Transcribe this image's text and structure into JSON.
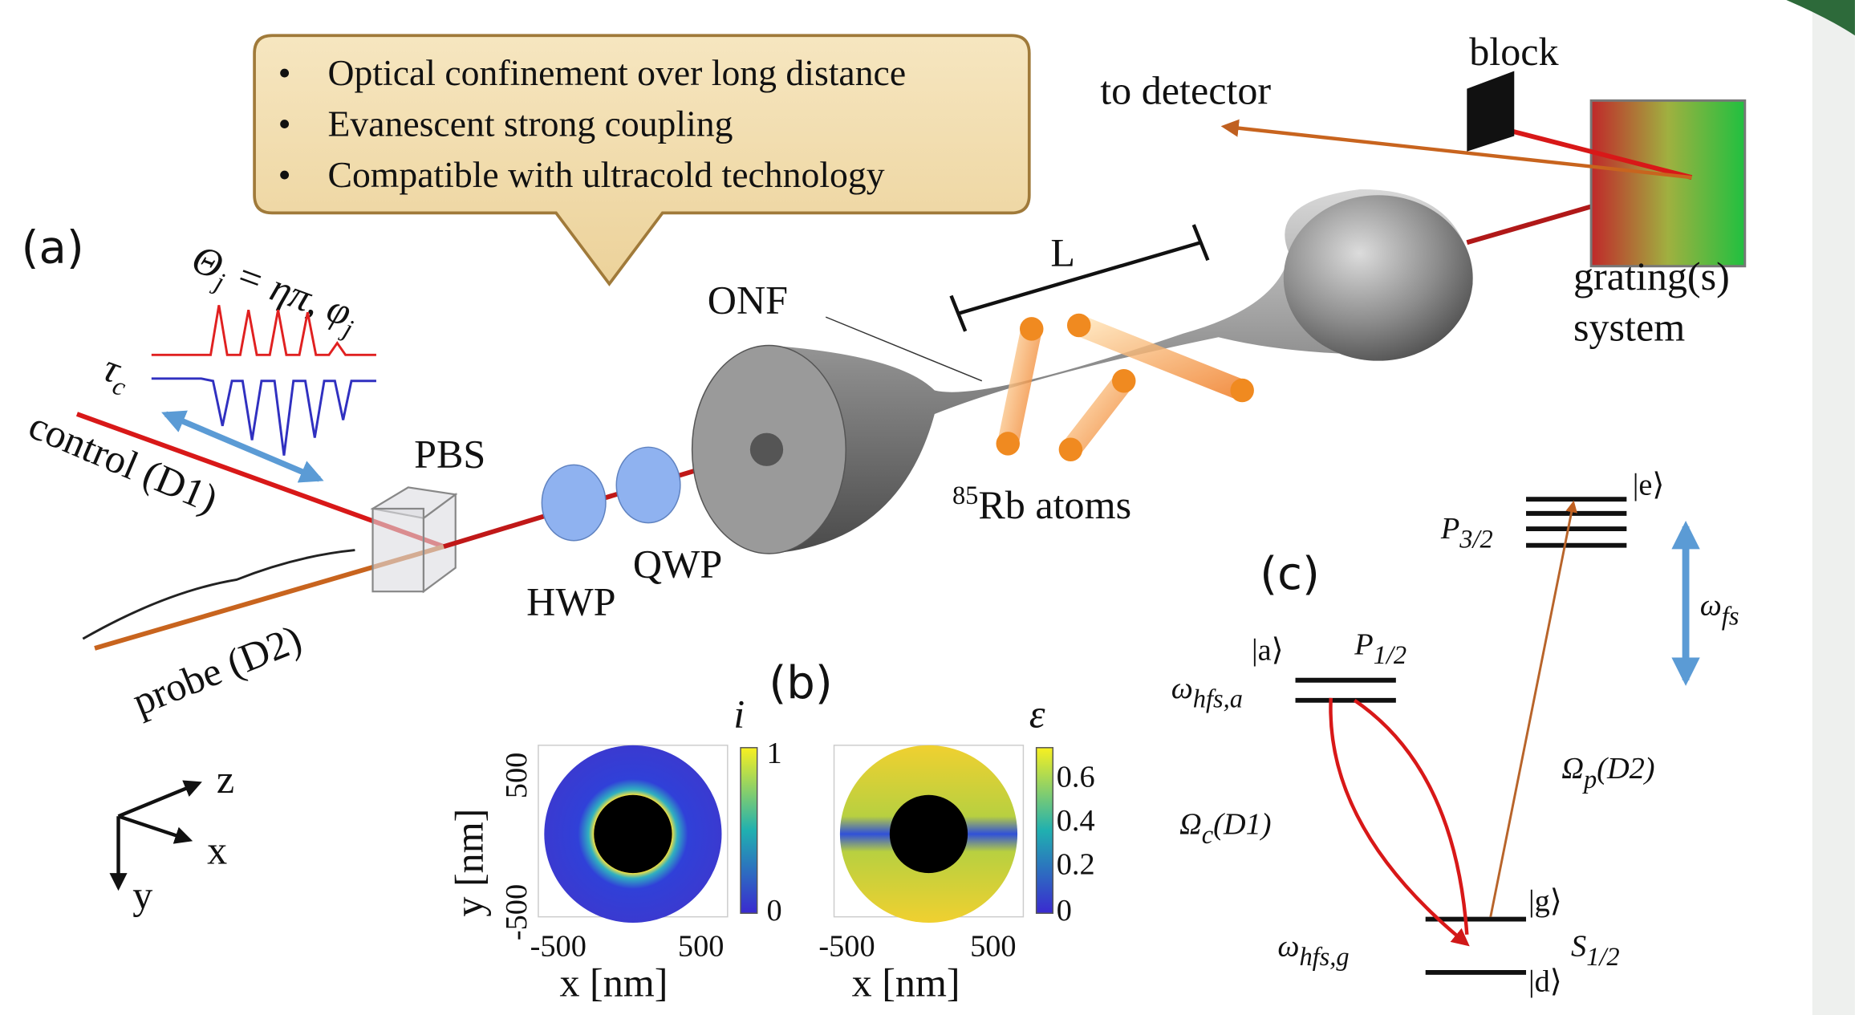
{
  "callout": {
    "items": [
      "Optical confinement over long distance",
      "Evanescent strong coupling",
      "Compatible with ultracold technology"
    ]
  },
  "panel_a": {
    "label": "(a)",
    "pulse_label": [
      "Θ",
      "j",
      " = ηπ, φ",
      "j"
    ],
    "tau": [
      "τ",
      "c"
    ],
    "control": "control (D1)",
    "probe": "probe (D2)",
    "pbs": "PBS",
    "hwp": "HWP",
    "qwp": "QWP",
    "onf": "ONF",
    "length": "L",
    "atoms": [
      "85",
      "Rb  atoms"
    ],
    "detector": "to detector",
    "block": "block",
    "grating": [
      "grating(s)",
      "system"
    ],
    "axes": {
      "z": "z",
      "x": "x",
      "y": "y"
    }
  },
  "panel_b": {
    "label": "(b)",
    "plots": [
      {
        "quantity": "i",
        "colorbar_ticks": [
          "1",
          "0"
        ],
        "y_ticks": [
          "500",
          "-500"
        ],
        "y_label": "y [nm]",
        "x_ticks": [
          "-500",
          "500"
        ],
        "x_label": "x [nm]"
      },
      {
        "quantity": "ε",
        "colorbar_ticks": [
          "0.6",
          "0.4",
          "0.2",
          "0"
        ],
        "x_ticks": [
          "-500",
          "500"
        ],
        "x_label": "x [nm]"
      }
    ]
  },
  "panel_c": {
    "label": "(c)",
    "e_state": "|e⟩",
    "p32": [
      "P",
      "3/2"
    ],
    "w_fs": [
      "ω",
      "fs"
    ],
    "a_state": "|a⟩",
    "p12": [
      "P",
      "1/2"
    ],
    "w_hfs_a": [
      "ω",
      "hfs,a"
    ],
    "omega_c": [
      "Ω",
      "c",
      "(D1)"
    ],
    "omega_p": [
      "Ω",
      "p",
      "(D2)"
    ],
    "g_state": "|g⟩",
    "s12": [
      "S",
      "1/2"
    ],
    "w_hfs_g": [
      "ω",
      "hfs,g"
    ],
    "d_state": "|d⟩"
  }
}
